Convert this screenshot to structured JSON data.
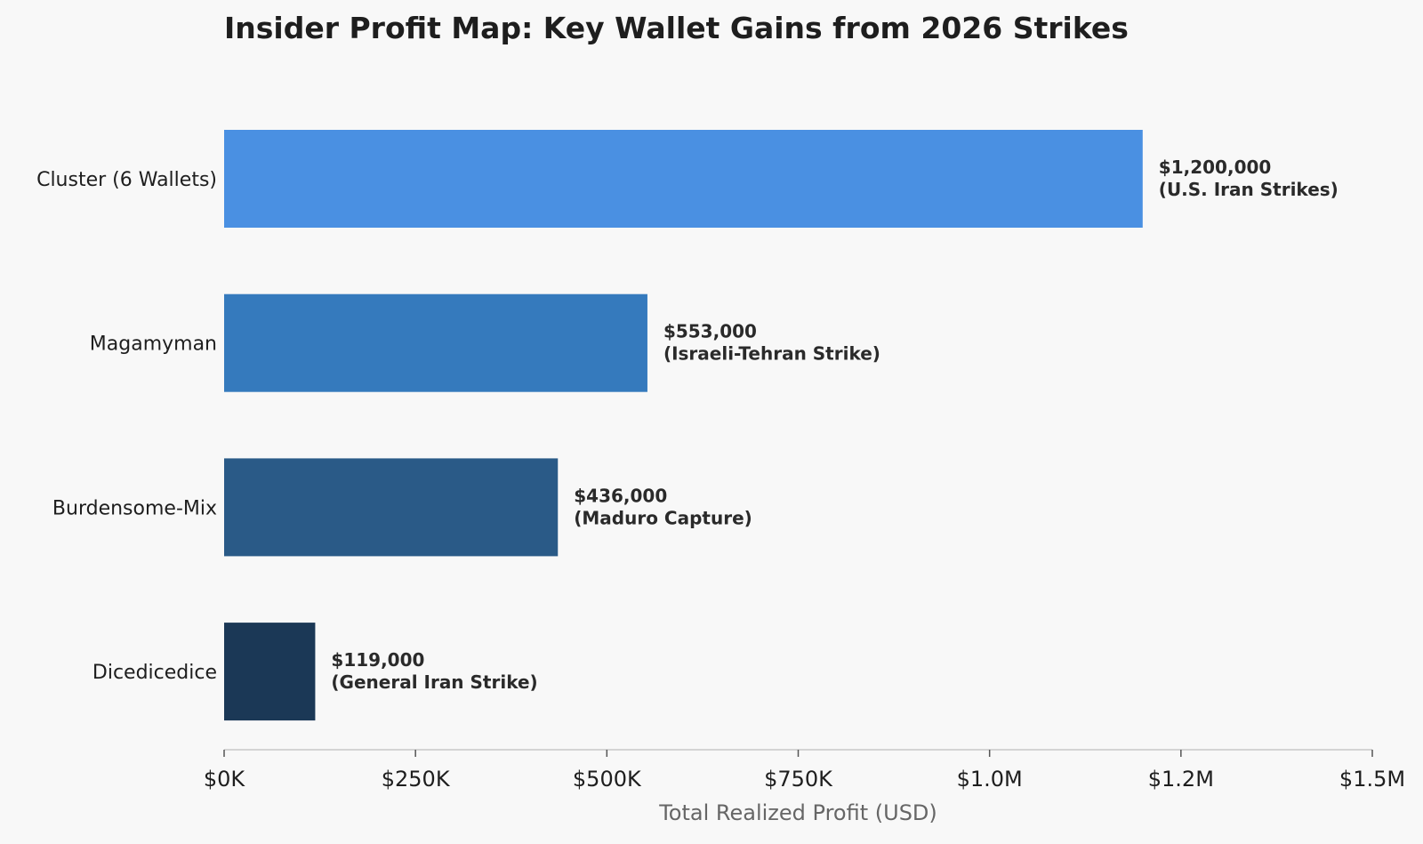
{
  "chart_data": {
    "type": "bar",
    "orientation": "horizontal",
    "title": "Insider Profit Map: Key Wallet Gains from 2026 Strikes",
    "xlabel": "Total Realized Profit (USD)",
    "ylabel": "",
    "xlim": [
      0,
      1500000
    ],
    "x_ticks": [
      0,
      250000,
      500000,
      750000,
      1000000,
      1250000,
      1500000
    ],
    "x_tick_labels": [
      "$0K",
      "$250K",
      "$500K",
      "$750K",
      "$1.0M",
      "$1.2M",
      "$1.5M"
    ],
    "grid": false,
    "categories": [
      "Cluster (6 Wallets)",
      "Magamyman",
      "Burdensome-Mix",
      "Dicedicedice"
    ],
    "values": [
      1200000,
      553000,
      436000,
      119000
    ],
    "colors": [
      "#4a90e2",
      "#357abd",
      "#2a5a87",
      "#1b3856"
    ],
    "data_labels": [
      [
        "$1,200,000",
        "(U.S. Iran Strikes)"
      ],
      [
        "$553,000",
        "(Israeli-Tehran Strike)"
      ],
      [
        "$436,000",
        "(Maduro Capture)"
      ],
      [
        "$119,000",
        "(General Iran Strike)"
      ]
    ]
  }
}
